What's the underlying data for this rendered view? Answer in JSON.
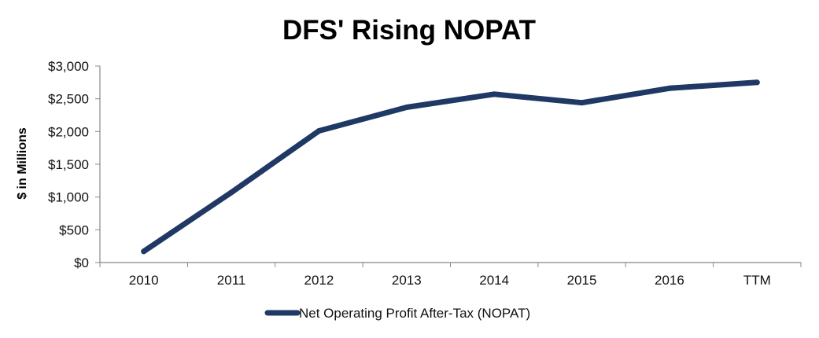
{
  "chart_data": {
    "type": "line",
    "title": "DFS' Rising NOPAT",
    "xlabel": "",
    "ylabel": "$ in Millions",
    "categories": [
      "2010",
      "2011",
      "2012",
      "2013",
      "2014",
      "2015",
      "2016",
      "TTM"
    ],
    "series": [
      {
        "name": "Net Operating Profit After-Tax (NOPAT)",
        "values": [
          170,
          1070,
          2010,
          2370,
          2570,
          2440,
          2660,
          2750
        ],
        "color": "#1f3864"
      }
    ],
    "ylim": [
      0,
      3000
    ],
    "yticks": [
      "$0",
      "$500",
      "$1,000",
      "$1,500",
      "$2,000",
      "$2,500",
      "$3,000"
    ],
    "ytick_values": [
      0,
      500,
      1000,
      1500,
      2000,
      2500,
      3000
    ],
    "grid": false,
    "legend_position": "bottom"
  }
}
